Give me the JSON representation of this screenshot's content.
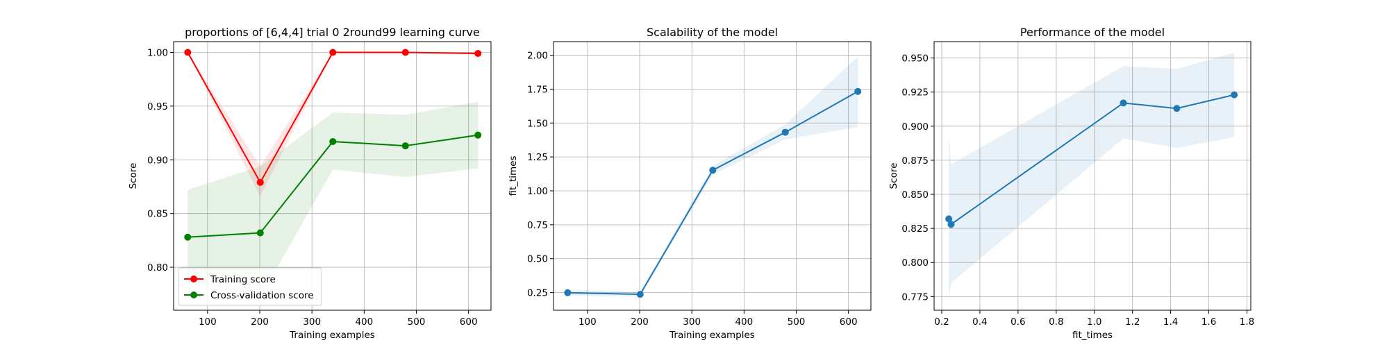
{
  "chart_data": [
    {
      "type": "line",
      "title": "proportions of [6,4,4] trial 0 2round99 learning curve",
      "xlabel": "Training examples",
      "ylabel": "Score",
      "xlim": [
        35,
        643
      ],
      "ylim": [
        0.76,
        1.01
      ],
      "xticks": [
        100,
        200,
        300,
        400,
        500,
        600
      ],
      "yticks": [
        0.8,
        0.85,
        0.9,
        0.95,
        1.0
      ],
      "grid": true,
      "legend": "lower-left",
      "x": [
        62,
        201,
        340,
        479,
        618
      ],
      "series": [
        {
          "name": "Training score",
          "color": "#ff0000",
          "values": [
            1.0,
            0.879,
            1.0,
            1.0,
            0.999
          ],
          "lower": [
            1.0,
            0.866,
            1.0,
            1.0,
            0.998
          ],
          "upper": [
            1.0,
            0.894,
            1.0,
            1.0,
            1.0
          ]
        },
        {
          "name": "Cross-validation score",
          "color": "#008000",
          "values": [
            0.828,
            0.832,
            0.917,
            0.913,
            0.923
          ],
          "lower": [
            0.785,
            0.772,
            0.891,
            0.884,
            0.892
          ],
          "upper": [
            0.872,
            0.894,
            0.944,
            0.942,
            0.954
          ]
        }
      ]
    },
    {
      "type": "line",
      "title": "Scalability of the model",
      "xlabel": "Training examples",
      "ylabel": "fit_times",
      "xlim": [
        35,
        643
      ],
      "ylim": [
        0.12,
        2.1
      ],
      "xticks": [
        100,
        200,
        300,
        400,
        500,
        600
      ],
      "yticks": [
        0.25,
        0.5,
        0.75,
        1.0,
        1.25,
        1.5,
        1.75,
        2.0
      ],
      "grid": true,
      "x": [
        62,
        201,
        340,
        479,
        618
      ],
      "series": [
        {
          "color": "#1f77b4",
          "values": [
            0.249,
            0.237,
            1.152,
            1.432,
            1.733
          ],
          "lower": [
            0.226,
            0.224,
            1.12,
            1.38,
            1.47
          ],
          "upper": [
            0.27,
            0.255,
            1.185,
            1.49,
            1.99
          ]
        }
      ]
    },
    {
      "type": "line",
      "title": "Performance of the model",
      "xlabel": "fit_times",
      "ylabel": "Score",
      "xlim": [
        0.16,
        1.82
      ],
      "ylim": [
        0.765,
        0.962
      ],
      "xticks": [
        0.2,
        0.4,
        0.6,
        0.8,
        1.0,
        1.2,
        1.4,
        1.6,
        1.8
      ],
      "xtick_labels": [
        "0.2",
        "0.4",
        "0.6",
        "0.8",
        "1.0",
        "1.2",
        "1.4",
        "1.6",
        "1.8"
      ],
      "yticks": [
        0.775,
        0.8,
        0.825,
        0.85,
        0.875,
        0.9,
        0.925,
        0.95
      ],
      "grid": true,
      "x": [
        0.237,
        0.249,
        1.152,
        1.432,
        1.733
      ],
      "series": [
        {
          "color": "#1f77b4",
          "values": [
            0.832,
            0.828,
            0.917,
            0.913,
            0.923
          ],
          "lower": [
            0.772,
            0.785,
            0.891,
            0.884,
            0.892
          ],
          "upper": [
            0.894,
            0.872,
            0.944,
            0.942,
            0.954
          ]
        }
      ]
    }
  ]
}
